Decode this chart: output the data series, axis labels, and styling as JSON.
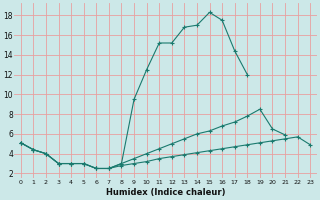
{
  "xlabel": "Humidex (Indice chaleur)",
  "bg_color": "#cce8e8",
  "grid_color": "#e8a0a0",
  "line_color": "#1a7a6e",
  "line1_y": [
    5.1,
    4.4,
    4.0,
    3.0,
    3.0,
    3.0,
    2.5,
    2.5,
    3.0,
    9.5,
    12.5,
    15.2,
    15.2,
    16.8,
    17.0,
    18.3,
    17.5,
    14.4,
    12.0,
    null,
    null,
    null,
    null,
    null
  ],
  "line2_y": [
    5.1,
    4.4,
    4.0,
    3.0,
    3.0,
    3.0,
    2.5,
    2.5,
    3.0,
    3.5,
    4.0,
    4.5,
    5.0,
    5.5,
    6.0,
    6.3,
    6.8,
    7.2,
    7.8,
    8.5,
    6.5,
    5.9,
    null,
    null
  ],
  "line3_y": [
    5.1,
    4.4,
    4.0,
    3.0,
    3.0,
    3.0,
    2.5,
    2.5,
    2.8,
    3.0,
    3.2,
    3.5,
    3.7,
    3.9,
    4.1,
    4.3,
    4.5,
    4.7,
    4.9,
    5.1,
    5.3,
    5.5,
    5.7,
    4.9
  ],
  "xlim": [
    -0.5,
    23.5
  ],
  "ylim": [
    1.5,
    19.2
  ],
  "yticks": [
    2,
    4,
    6,
    8,
    10,
    12,
    14,
    16,
    18
  ],
  "xticks": [
    0,
    1,
    2,
    3,
    4,
    5,
    6,
    7,
    8,
    9,
    10,
    11,
    12,
    13,
    14,
    15,
    16,
    17,
    18,
    19,
    20,
    21,
    22,
    23
  ],
  "marker": "+"
}
